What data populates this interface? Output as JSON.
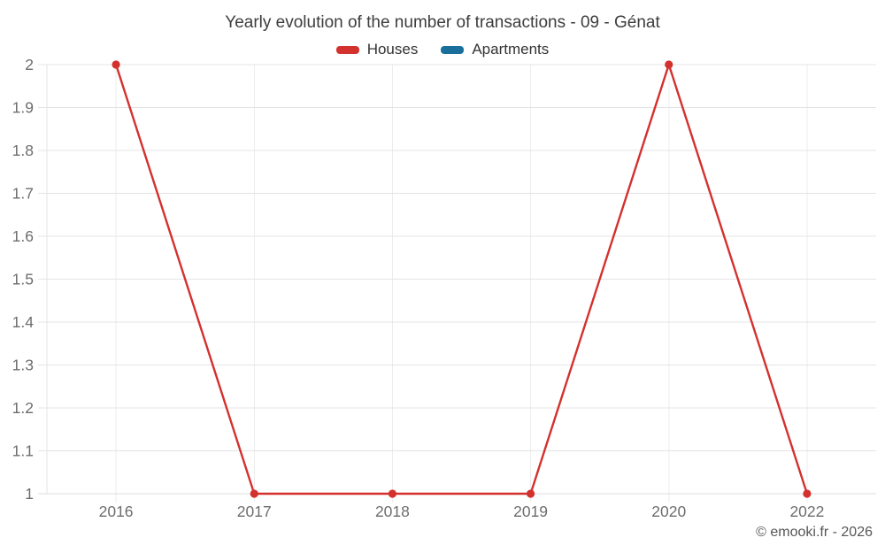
{
  "title": "Yearly evolution of the number of transactions - 09 - Génat",
  "footer": {
    "copyright": "© emooki.fr - 2026"
  },
  "chart_data": {
    "type": "line",
    "title": "Yearly evolution of the number of transactions - 09 - Génat",
    "categories": [
      "2016",
      "2017",
      "2018",
      "2019",
      "2020",
      "2022"
    ],
    "series": [
      {
        "name": "Houses",
        "color": "#d3312e",
        "values": [
          2,
          1,
          1,
          1,
          2,
          1
        ]
      },
      {
        "name": "Apartments",
        "color": "#1a6e9b",
        "values": []
      }
    ],
    "xlabel": "",
    "ylabel": "",
    "ylim": [
      1,
      2
    ],
    "ytick_step": 0.1,
    "ytick_labels": [
      "1",
      "1.1",
      "1.2",
      "1.3",
      "1.4",
      "1.5",
      "1.6",
      "1.7",
      "1.8",
      "1.9",
      "2"
    ],
    "grid": true,
    "legend_position": "top",
    "colors": {
      "grid_horizontal": "#e4e4e4",
      "grid_vertical": "#ededed",
      "axis_line": "#dcdcdc",
      "tick_label": "#6d6d6d",
      "background": "#ffffff"
    }
  }
}
